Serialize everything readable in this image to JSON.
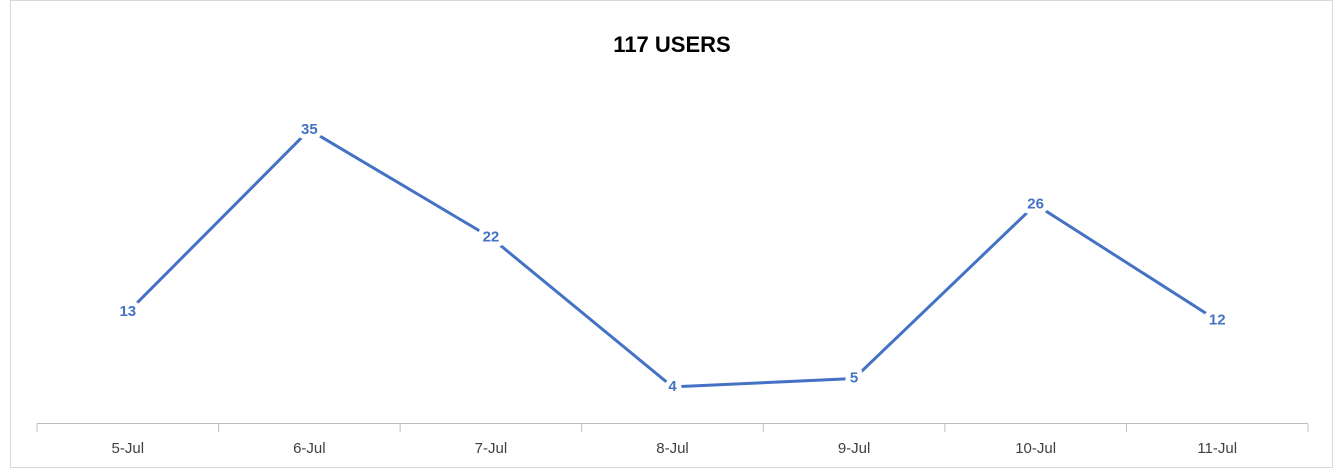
{
  "chart_data": {
    "type": "line",
    "title": "117 USERS",
    "categories": [
      "5-Jul",
      "6-Jul",
      "7-Jul",
      "8-Jul",
      "9-Jul",
      "10-Jul",
      "11-Jul"
    ],
    "values": [
      13,
      35,
      22,
      4,
      5,
      26,
      12
    ],
    "color": "#4472c4"
  }
}
